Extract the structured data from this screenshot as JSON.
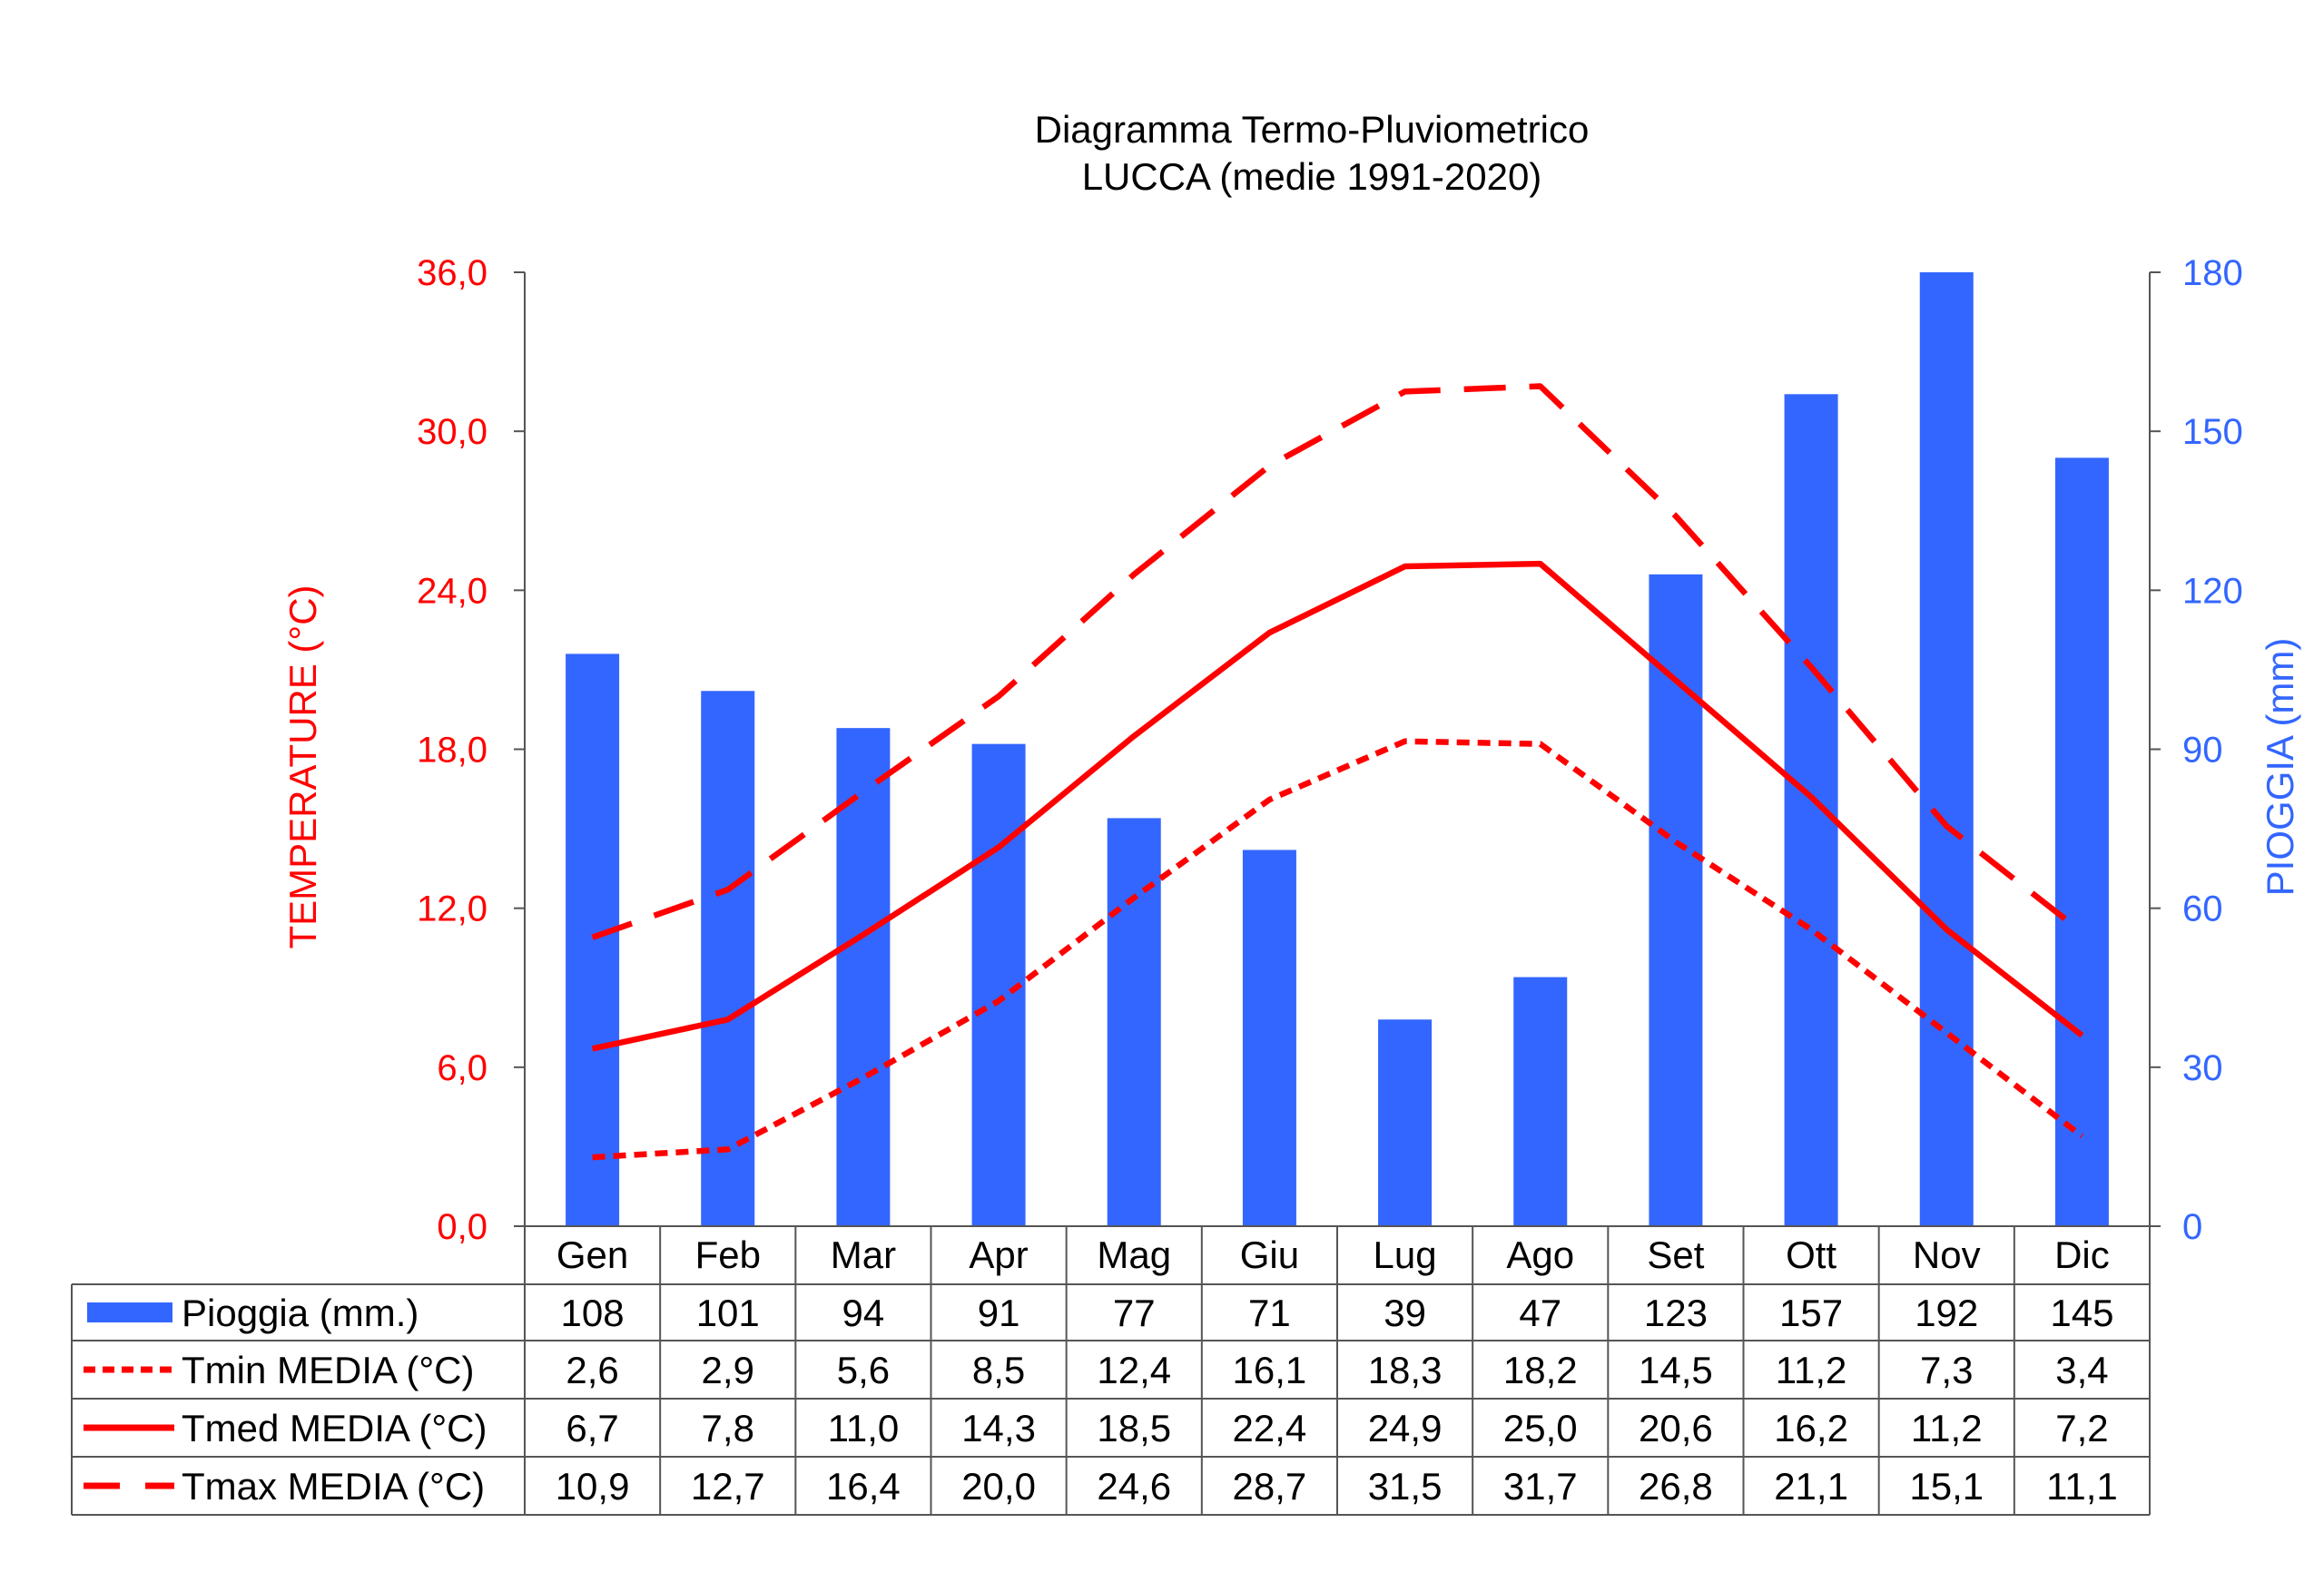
{
  "chart_data": {
    "type": "bar+line",
    "title": "Diagramma Termo-Pluviometrico",
    "subtitle": "LUCCA (medie 1991-2020)",
    "categories": [
      "Gen",
      "Feb",
      "Mar",
      "Apr",
      "Mag",
      "Giu",
      "Lug",
      "Ago",
      "Set",
      "Ott",
      "Nov",
      "Dic"
    ],
    "y_left": {
      "label": "TEMPERATURE (°C)",
      "range": [
        0,
        36
      ],
      "ticks": [
        "0,0",
        "6,0",
        "12,0",
        "18,0",
        "24,0",
        "30,0",
        "36,0"
      ],
      "tick_values": [
        0,
        6,
        12,
        18,
        24,
        30,
        36
      ],
      "color": "#ff0000"
    },
    "y_right": {
      "label": "PIOGGIA (mm)",
      "range": [
        0,
        180
      ],
      "ticks": [
        "0",
        "30",
        "60",
        "90",
        "120",
        "150",
        "180"
      ],
      "tick_values": [
        0,
        30,
        60,
        90,
        120,
        150,
        180
      ],
      "color": "#3366ff"
    },
    "grid": false,
    "legend_placement": "data-table-bottom",
    "series": [
      {
        "name": "Pioggia (mm.)",
        "type": "bar",
        "axis": "right",
        "color": "#3366ff",
        "values": [
          108,
          101,
          94,
          91,
          77,
          71,
          39,
          47,
          123,
          157,
          192,
          145
        ],
        "labels": [
          "108",
          "101",
          "94",
          "91",
          "77",
          "71",
          "39",
          "47",
          "123",
          "157",
          "192",
          "145"
        ]
      },
      {
        "name": "Tmin MEDIA (°C)",
        "type": "line",
        "style": "dotted",
        "axis": "left",
        "color": "#ff0000",
        "values": [
          2.6,
          2.9,
          5.6,
          8.5,
          12.4,
          16.1,
          18.3,
          18.2,
          14.5,
          11.2,
          7.3,
          3.4
        ],
        "labels": [
          "2,6",
          "2,9",
          "5,6",
          "8,5",
          "12,4",
          "16,1",
          "18,3",
          "18,2",
          "14,5",
          "11,2",
          "7,3",
          "3,4"
        ]
      },
      {
        "name": "Tmed MEDIA (°C)",
        "type": "line",
        "style": "solid",
        "axis": "left",
        "color": "#ff0000",
        "values": [
          6.7,
          7.8,
          11.0,
          14.3,
          18.5,
          22.4,
          24.9,
          25.0,
          20.6,
          16.2,
          11.2,
          7.2
        ],
        "labels": [
          "6,7",
          "7,8",
          "11,0",
          "14,3",
          "18,5",
          "22,4",
          "24,9",
          "25,0",
          "20,6",
          "16,2",
          "11,2",
          "7,2"
        ]
      },
      {
        "name": "Tmax MEDIA (°C)",
        "type": "line",
        "style": "dashed",
        "axis": "left",
        "color": "#ff0000",
        "values": [
          10.9,
          12.7,
          16.4,
          20.0,
          24.6,
          28.7,
          31.5,
          31.7,
          26.8,
          21.1,
          15.1,
          11.1
        ],
        "labels": [
          "10,9",
          "12,7",
          "16,4",
          "20,0",
          "24,6",
          "28,7",
          "31,5",
          "31,7",
          "26,8",
          "21,1",
          "15,1",
          "11,1"
        ]
      }
    ]
  }
}
